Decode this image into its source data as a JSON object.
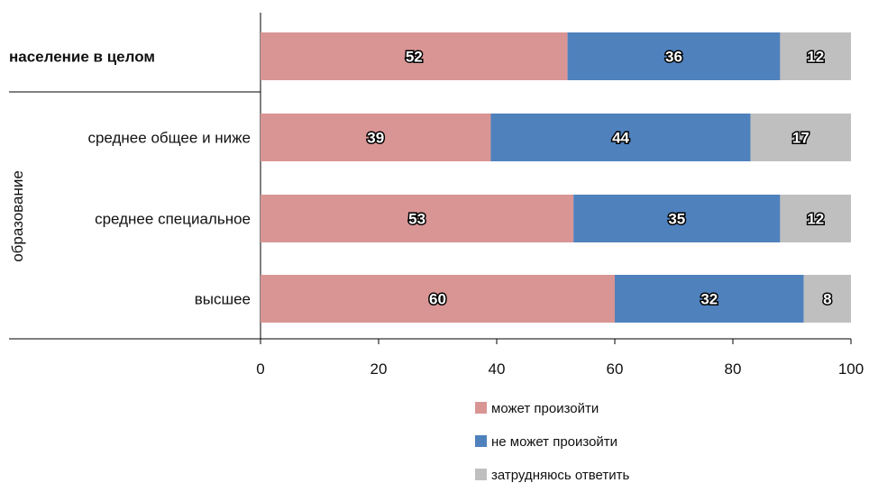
{
  "chart_data": {
    "type": "bar",
    "orientation": "horizontal",
    "stacked": true,
    "categories": [
      "население в целом",
      "среднее общее и ниже",
      "среднее специальное",
      "высшее"
    ],
    "category_bold": [
      true,
      false,
      false,
      false
    ],
    "group_label": "образование",
    "series": [
      {
        "name": "может произойти",
        "values": [
          52,
          39,
          53,
          60
        ],
        "color": "#D99594"
      },
      {
        "name": "не может произойти",
        "values": [
          36,
          44,
          35,
          32
        ],
        "color": "#4F81BD"
      },
      {
        "name": "затрудняюсь ответить",
        "values": [
          12,
          17,
          12,
          8
        ],
        "color": "#BFBFBF"
      }
    ],
    "xlim": [
      0,
      100
    ],
    "xticks": [
      "0",
      "20",
      "40",
      "60",
      "80",
      "100"
    ],
    "grid": false,
    "legend_position": "bottom-right"
  }
}
